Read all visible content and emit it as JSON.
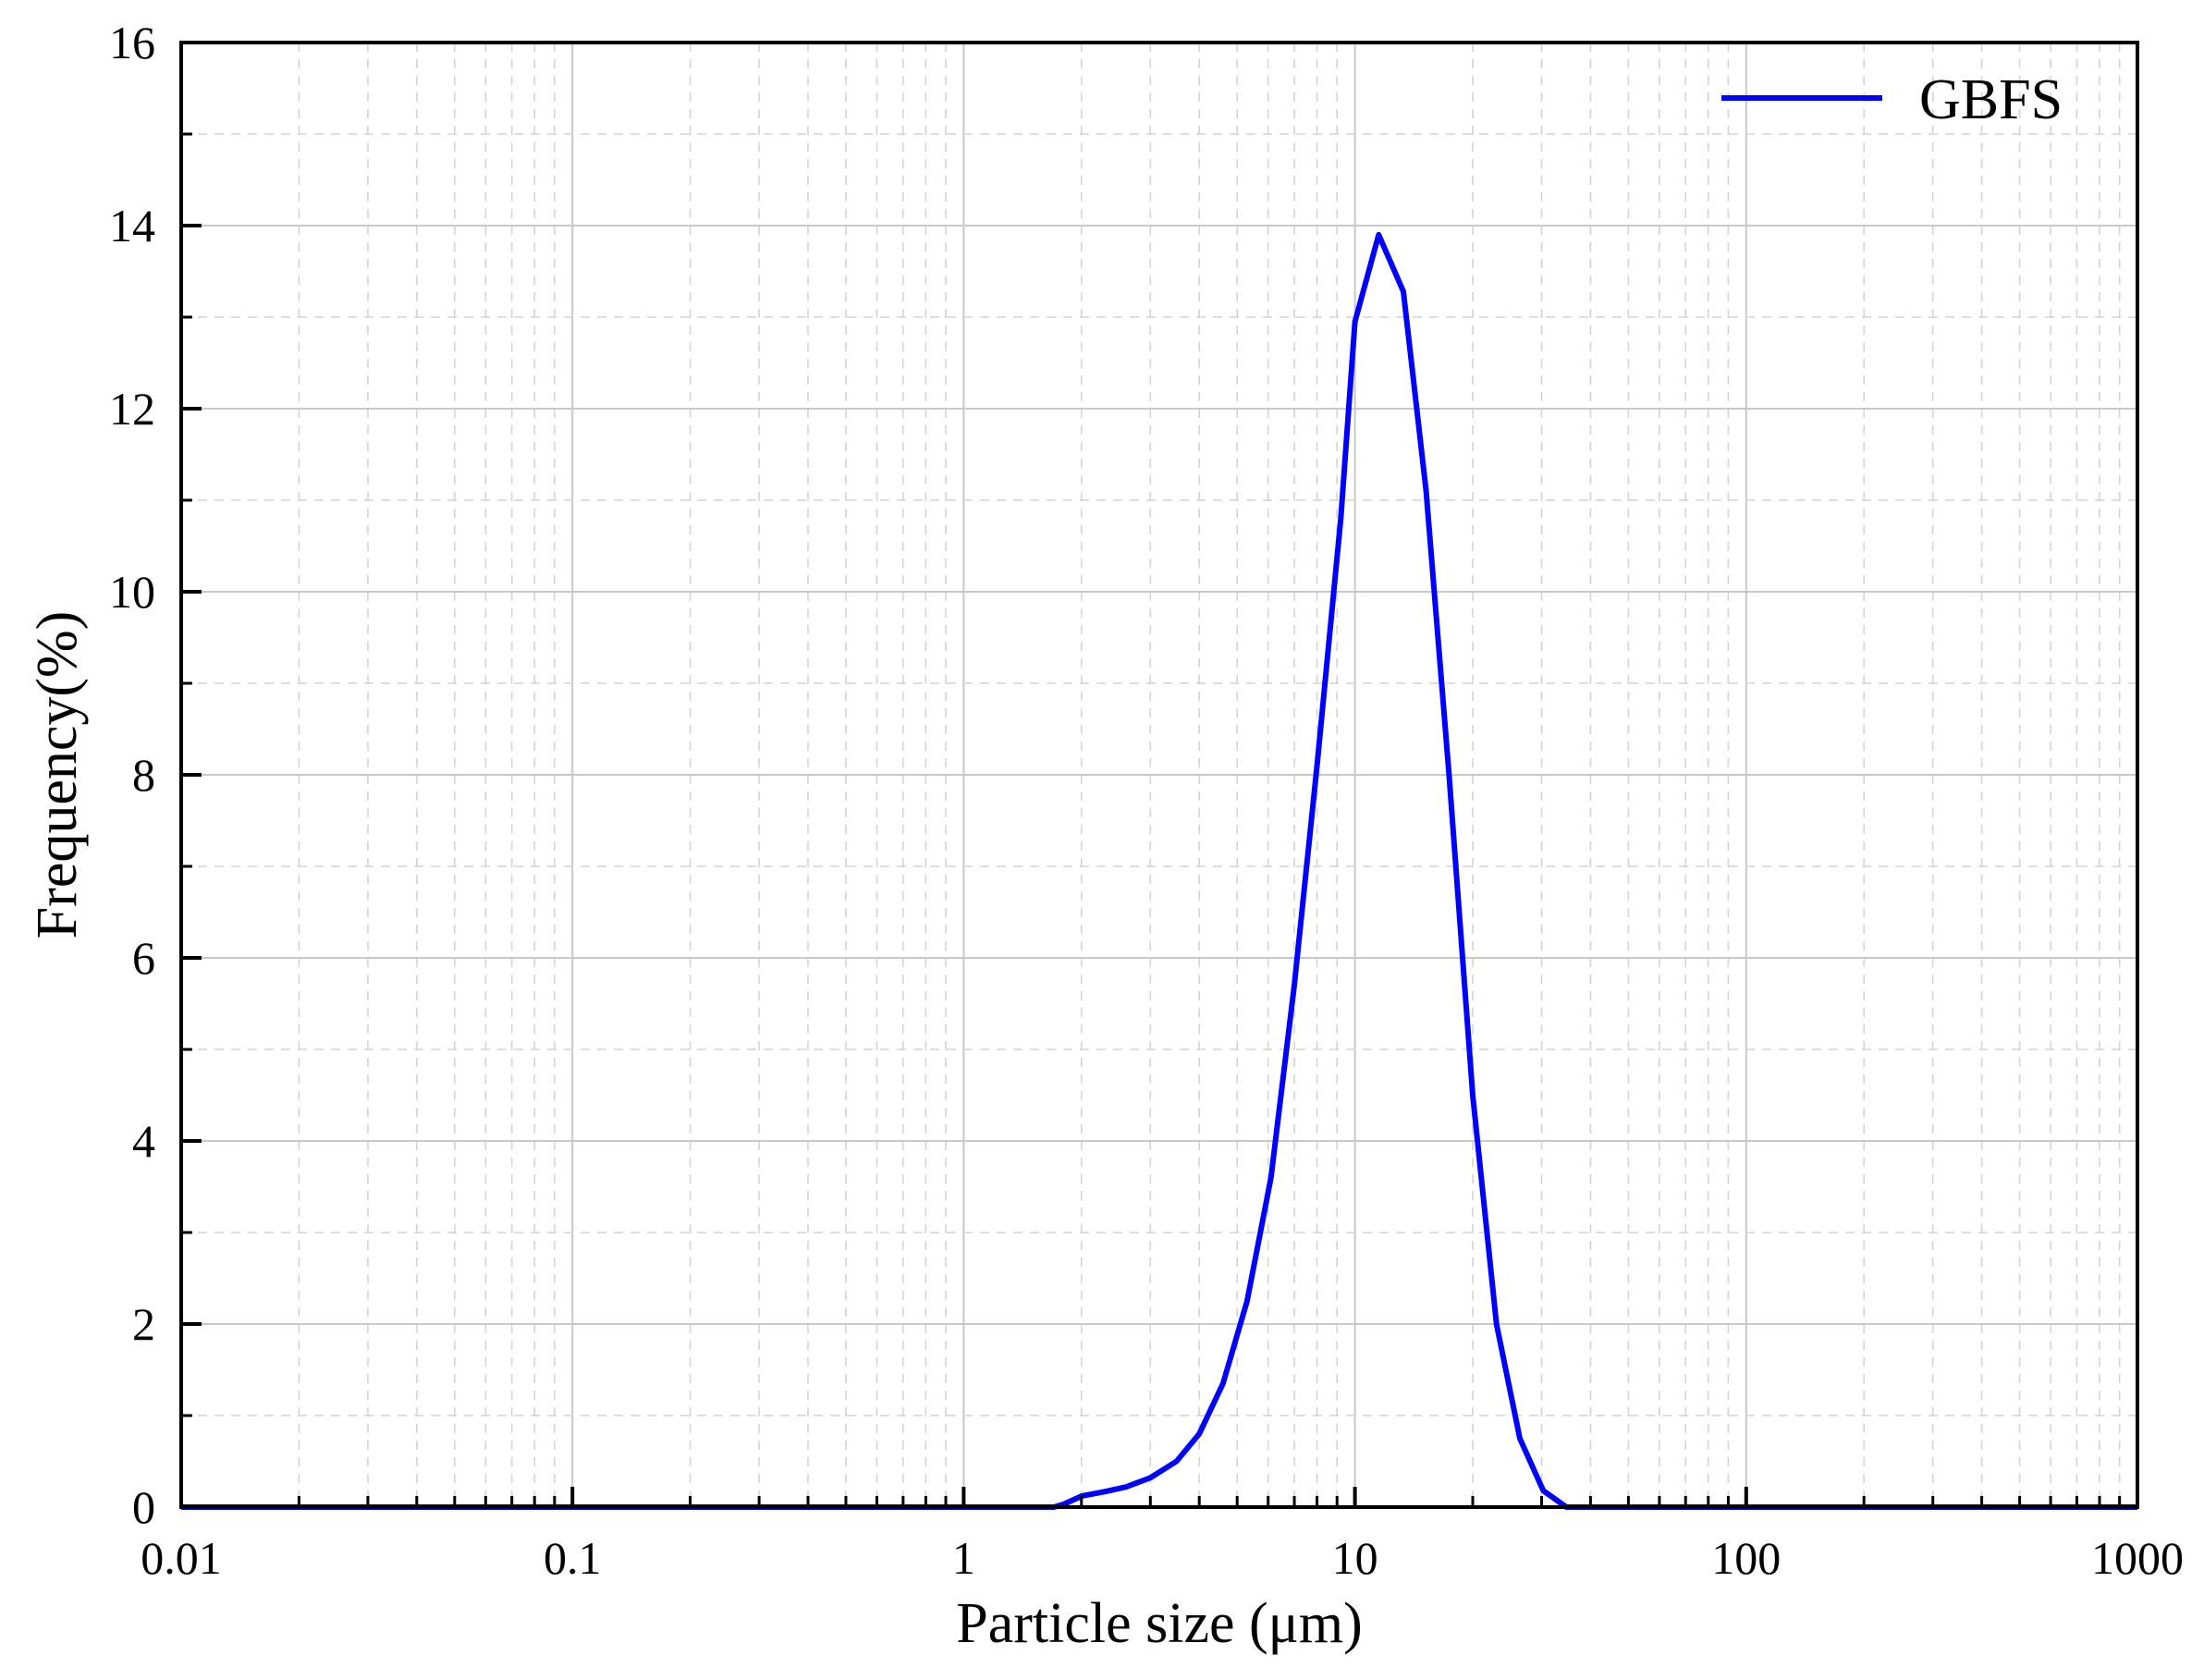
{
  "chart_data": {
    "type": "line",
    "xlabel": "Particle size (μm)",
    "ylabel": "Frequency(%)",
    "xscale": "log",
    "xlim": [
      0.01,
      1000
    ],
    "ylim": [
      0,
      16
    ],
    "x_ticks": [
      "0.01",
      "0.1",
      "1",
      "10",
      "100",
      "1000"
    ],
    "y_ticks": [
      "0",
      "2",
      "4",
      "6",
      "8",
      "10",
      "12",
      "14",
      "16"
    ],
    "grid": true,
    "legend_position": "top-right",
    "series": [
      {
        "name": "GBFS",
        "color": "#0000ff",
        "x": [
          0.01,
          1.0,
          1.7,
          1.8,
          2.0,
          2.3,
          2.6,
          3.0,
          3.5,
          4.0,
          4.6,
          5.3,
          6.1,
          7.0,
          8.0,
          9.2,
          10.0,
          11.5,
          13.3,
          15.2,
          17.4,
          20.0,
          23.0,
          26.4,
          30.3,
          34.7,
          40.0,
          100.0,
          1000.0
        ],
        "y": [
          0,
          0,
          0,
          0.03,
          0.12,
          0.17,
          0.22,
          0.32,
          0.5,
          0.8,
          1.35,
          2.25,
          3.6,
          5.7,
          8.1,
          10.8,
          12.95,
          13.9,
          13.28,
          11.1,
          8.0,
          4.5,
          2.0,
          0.75,
          0.18,
          0.0,
          0,
          0,
          0
        ]
      }
    ]
  }
}
